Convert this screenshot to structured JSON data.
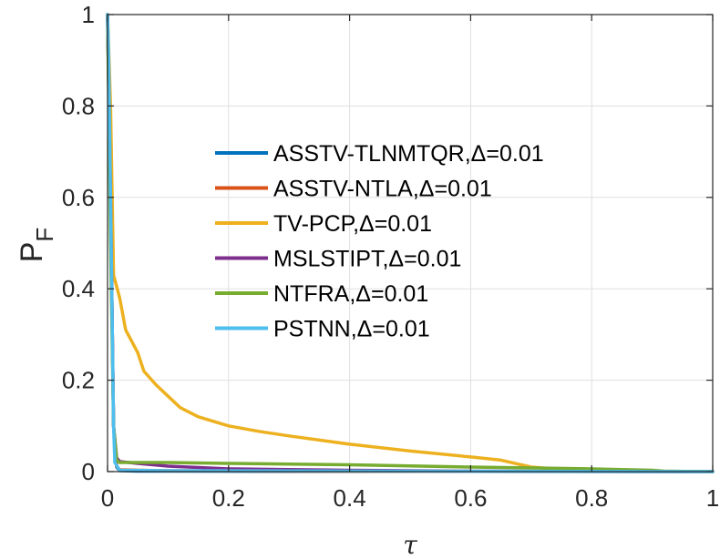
{
  "chart_data": {
    "type": "line",
    "title": "",
    "xlabel": "τ",
    "ylabel_main": "P",
    "ylabel_sub": "F",
    "xlim": [
      0,
      1
    ],
    "ylim": [
      0,
      1
    ],
    "xticks": [
      0,
      0.2,
      0.4,
      0.6,
      0.8,
      1
    ],
    "xtick_labels": [
      "0",
      "0.2",
      "0.4",
      "0.6",
      "0.8",
      "1"
    ],
    "yticks": [
      0,
      0.2,
      0.4,
      0.6,
      0.8,
      1
    ],
    "ytick_labels": [
      "0",
      "0.2",
      "0.4",
      "0.6",
      "0.8",
      "1"
    ],
    "grid": true,
    "legend_position": "center",
    "series": [
      {
        "name": "ASSTV-TLNMTQR,Δ=0.01",
        "color": "#0072BD",
        "x": [
          0,
          0.005,
          0.01,
          0.015,
          0.02,
          0.05,
          0.1,
          0.3,
          0.6,
          1
        ],
        "y": [
          1,
          0.6,
          0.1,
          0.01,
          0.002,
          0.001,
          0.001,
          0.0005,
          0.0003,
          0
        ]
      },
      {
        "name": "ASSTV-NTLA,Δ=0.01",
        "color": "#D95319",
        "x": [
          0,
          0.005,
          0.01,
          0.015,
          0.02,
          0.05,
          0.1,
          0.3,
          0.6,
          1
        ],
        "y": [
          1,
          0.6,
          0.1,
          0.012,
          0.004,
          0.003,
          0.002,
          0.001,
          0.0005,
          0
        ]
      },
      {
        "name": "TV-PCP,Δ=0.01",
        "color": "#EDB120",
        "x": [
          0,
          0.005,
          0.01,
          0.02,
          0.03,
          0.05,
          0.06,
          0.08,
          0.1,
          0.12,
          0.15,
          0.2,
          0.25,
          0.3,
          0.4,
          0.5,
          0.6,
          0.65,
          0.7,
          0.75,
          0.8,
          0.9,
          1
        ],
        "y": [
          1,
          0.8,
          0.43,
          0.38,
          0.31,
          0.26,
          0.22,
          0.19,
          0.165,
          0.14,
          0.12,
          0.1,
          0.088,
          0.078,
          0.06,
          0.045,
          0.032,
          0.025,
          0.01,
          0.005,
          0.003,
          0.001,
          0
        ]
      },
      {
        "name": "MSLSTIPT,Δ=0.01",
        "color": "#7E2F8E",
        "x": [
          0,
          0.005,
          0.01,
          0.015,
          0.02,
          0.05,
          0.1,
          0.2,
          0.4,
          0.6,
          1
        ],
        "y": [
          1,
          0.6,
          0.1,
          0.03,
          0.022,
          0.018,
          0.012,
          0.006,
          0.003,
          0.001,
          0
        ]
      },
      {
        "name": "NTFRA,Δ=0.01",
        "color": "#77AC30",
        "x": [
          0,
          0.005,
          0.01,
          0.015,
          0.02,
          0.1,
          0.2,
          0.4,
          0.6,
          0.8,
          0.9,
          0.92,
          1
        ],
        "y": [
          1,
          0.5,
          0.1,
          0.025,
          0.02,
          0.02,
          0.018,
          0.015,
          0.01,
          0.006,
          0.003,
          0.001,
          0
        ]
      },
      {
        "name": "PSTNN,Δ=0.01",
        "color": "#4DBEEE",
        "x": [
          0,
          0.002,
          0.005,
          0.008,
          0.01,
          0.012,
          0.02,
          0.1,
          0.5,
          1
        ],
        "y": [
          1,
          0.9,
          0.6,
          0.3,
          0.1,
          0.02,
          0.003,
          0.002,
          0.001,
          0
        ]
      }
    ]
  }
}
